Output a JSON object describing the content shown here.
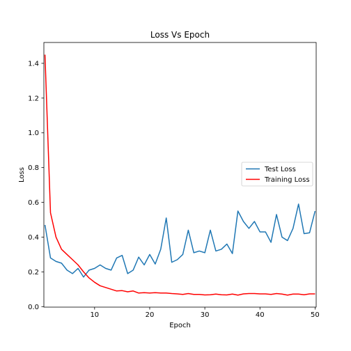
{
  "chart_data": {
    "type": "line",
    "title": "Loss Vs Epoch",
    "xlabel": "Epoch",
    "ylabel": "Loss",
    "xlim": [
      0.8,
      50.2
    ],
    "ylim": [
      -0.003,
      1.52
    ],
    "xticks": [
      10,
      20,
      30,
      40,
      50
    ],
    "yticks": [
      0.0,
      0.2,
      0.4,
      0.6,
      0.8,
      1.0,
      1.2,
      1.4
    ],
    "ytick_labels": [
      "0.0",
      "0.2",
      "0.4",
      "0.6",
      "0.8",
      "1.0",
      "1.2",
      "1.4"
    ],
    "grid": false,
    "legend_position": "center-right",
    "x": [
      1,
      2,
      3,
      4,
      5,
      6,
      7,
      8,
      9,
      10,
      11,
      12,
      13,
      14,
      15,
      16,
      17,
      18,
      19,
      20,
      21,
      22,
      23,
      24,
      25,
      26,
      27,
      28,
      29,
      30,
      31,
      32,
      33,
      34,
      35,
      36,
      37,
      38,
      39,
      40,
      41,
      42,
      43,
      44,
      45,
      46,
      47,
      48,
      49,
      50
    ],
    "series": [
      {
        "name": "Test Loss",
        "color": "#1f77b4",
        "values": [
          0.47,
          0.28,
          0.26,
          0.25,
          0.21,
          0.19,
          0.22,
          0.17,
          0.21,
          0.22,
          0.24,
          0.22,
          0.21,
          0.28,
          0.295,
          0.19,
          0.21,
          0.285,
          0.24,
          0.3,
          0.245,
          0.33,
          0.51,
          0.255,
          0.27,
          0.3,
          0.44,
          0.31,
          0.32,
          0.31,
          0.44,
          0.32,
          0.33,
          0.36,
          0.305,
          0.55,
          0.49,
          0.45,
          0.49,
          0.43,
          0.43,
          0.37,
          0.53,
          0.4,
          0.38,
          0.45,
          0.59,
          0.42,
          0.425,
          0.55
        ]
      },
      {
        "name": "Training Loss",
        "color": "#ff0000",
        "values": [
          1.45,
          0.54,
          0.4,
          0.33,
          0.3,
          0.27,
          0.24,
          0.2,
          0.165,
          0.14,
          0.12,
          0.11,
          0.1,
          0.09,
          0.092,
          0.085,
          0.09,
          0.078,
          0.08,
          0.078,
          0.08,
          0.078,
          0.078,
          0.075,
          0.073,
          0.07,
          0.075,
          0.07,
          0.07,
          0.067,
          0.068,
          0.072,
          0.068,
          0.067,
          0.072,
          0.066,
          0.073,
          0.075,
          0.075,
          0.073,
          0.073,
          0.07,
          0.075,
          0.072,
          0.066,
          0.072,
          0.072,
          0.068,
          0.073,
          0.073
        ]
      }
    ]
  }
}
